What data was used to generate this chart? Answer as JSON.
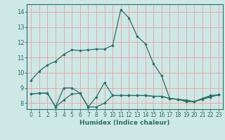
{
  "xlabel": "Humidex (Indice chaleur)",
  "background_color": "#cde8e5",
  "grid_color": "#e8aaaa",
  "line_color": "#2a6e68",
  "ylim": [
    7.6,
    14.5
  ],
  "xlim": [
    -0.5,
    23.5
  ],
  "yticks": [
    8,
    9,
    10,
    11,
    12,
    13,
    14
  ],
  "xticks": [
    0,
    1,
    2,
    3,
    4,
    5,
    6,
    7,
    8,
    9,
    10,
    11,
    12,
    13,
    14,
    15,
    16,
    17,
    18,
    19,
    20,
    21,
    22,
    23
  ],
  "series1_x": [
    0,
    1,
    2,
    3,
    4,
    5,
    6,
    7,
    8,
    9,
    10,
    11,
    12,
    13,
    14,
    15,
    16,
    17,
    18,
    19,
    20,
    21,
    22,
    23
  ],
  "series1_y": [
    9.5,
    10.1,
    10.5,
    10.75,
    11.2,
    11.5,
    11.45,
    11.5,
    11.55,
    11.55,
    11.8,
    14.15,
    13.6,
    12.4,
    11.9,
    10.6,
    9.8,
    8.3,
    8.25,
    8.15,
    8.1,
    8.3,
    8.5,
    8.55
  ],
  "series2_x": [
    0,
    1,
    2,
    3,
    4,
    5,
    6,
    7,
    8,
    9,
    10,
    11,
    12,
    13,
    14,
    15,
    16,
    17,
    18,
    19,
    20,
    21,
    22,
    23
  ],
  "series2_y": [
    8.6,
    8.65,
    8.65,
    7.75,
    9.0,
    9.0,
    8.65,
    7.75,
    8.4,
    9.35,
    8.5,
    8.5,
    8.5,
    8.5,
    8.5,
    8.45,
    8.45,
    8.3,
    8.25,
    8.2,
    8.1,
    8.3,
    8.45,
    8.55
  ],
  "series3_x": [
    0,
    1,
    2,
    3,
    4,
    5,
    6,
    7,
    8,
    9,
    10,
    11,
    12,
    13,
    14,
    15,
    16,
    17,
    18,
    19,
    20,
    21,
    22,
    23
  ],
  "series3_y": [
    8.6,
    8.65,
    8.65,
    7.75,
    8.2,
    8.6,
    8.65,
    7.75,
    7.75,
    8.0,
    8.5,
    8.5,
    8.5,
    8.5,
    8.5,
    8.45,
    8.45,
    8.3,
    8.25,
    8.1,
    8.1,
    8.25,
    8.4,
    8.55
  ],
  "tick_fontsize": 5.5,
  "xlabel_fontsize": 6.5
}
